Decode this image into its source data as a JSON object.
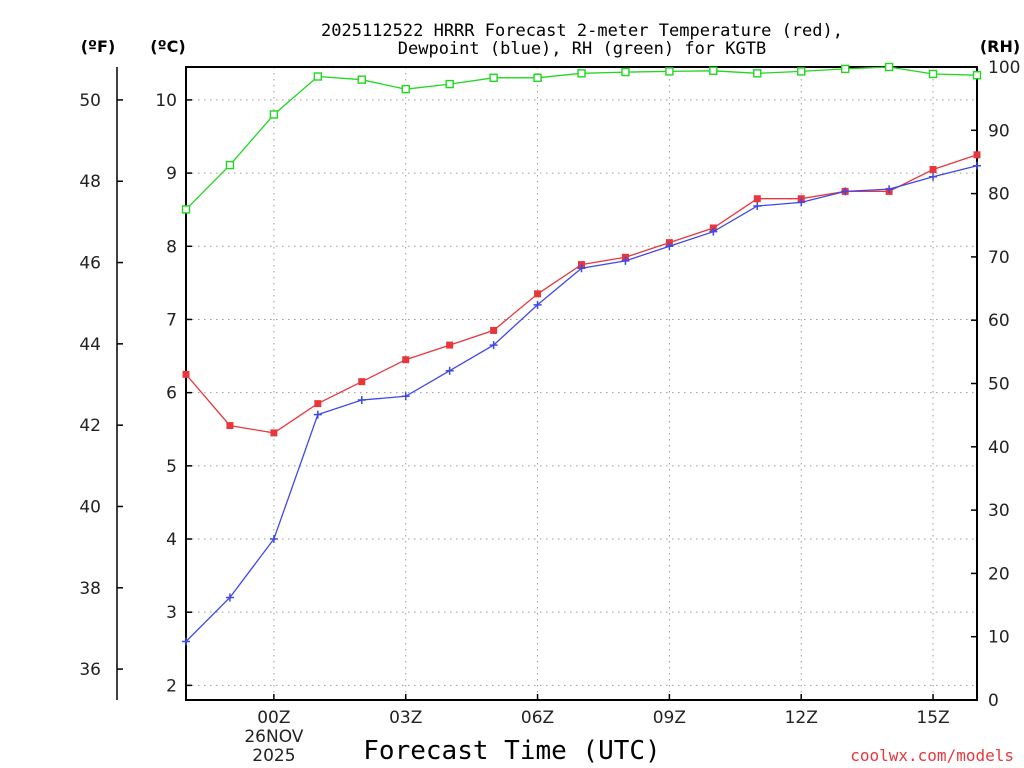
{
  "chart_data": {
    "type": "line",
    "title_line1": "2025112522 HRRR Forecast 2-meter Temperature (red),",
    "title_line2": "Dewpoint (blue), RH (green) for KGTB",
    "xlabel": "Forecast Time (UTC)",
    "credit": "coolwx.com/models",
    "unit_labels": {
      "fahrenheit": "(ºF)",
      "celsius": "(ºC)",
      "rh": "(RH)"
    },
    "x_hours": [
      -2,
      -1,
      0,
      1,
      2,
      3,
      4,
      5,
      6,
      7,
      8,
      9,
      10,
      11,
      12,
      13,
      14,
      15,
      16
    ],
    "x_ticks": [
      {
        "hour": 0,
        "label": "00Z",
        "sub1": "26NOV",
        "sub2": "2025"
      },
      {
        "hour": 3,
        "label": "03Z"
      },
      {
        "hour": 6,
        "label": "06Z"
      },
      {
        "hour": 9,
        "label": "09Z"
      },
      {
        "hour": 12,
        "label": "12Z"
      },
      {
        "hour": 15,
        "label": "15Z"
      }
    ],
    "x_range": [
      -2,
      16
    ],
    "celsius_axis": {
      "range": [
        1.8,
        10.45
      ],
      "ticks": [
        "2",
        "3",
        "4",
        "5",
        "6",
        "7",
        "8",
        "9",
        "10"
      ]
    },
    "fahrenheit_axis": {
      "ticks": [
        "36",
        "38",
        "40",
        "42",
        "44",
        "46",
        "48",
        "50"
      ]
    },
    "rh_axis": {
      "range": [
        0,
        100
      ],
      "ticks": [
        "0",
        "10",
        "20",
        "30",
        "40",
        "50",
        "60",
        "70",
        "80",
        "90",
        "100"
      ]
    },
    "series": [
      {
        "name": "Temperature",
        "unit": "C",
        "color": "#e8373c",
        "marker": "filled-square",
        "values": [
          6.25,
          5.55,
          5.45,
          5.85,
          6.15,
          6.45,
          6.65,
          6.85,
          7.35,
          7.75,
          7.85,
          8.05,
          8.25,
          8.65,
          8.65,
          8.75,
          8.75,
          9.05,
          9.25
        ]
      },
      {
        "name": "Dewpoint",
        "unit": "C",
        "color": "#3f48e8",
        "marker": "plus",
        "values": [
          2.6,
          3.2,
          4.0,
          5.7,
          5.9,
          5.95,
          6.3,
          6.65,
          7.2,
          7.7,
          7.8,
          8.0,
          8.2,
          8.55,
          8.6,
          8.75,
          8.78,
          8.95,
          9.1
        ]
      },
      {
        "name": "RH",
        "unit": "%",
        "color": "#1fd81f",
        "marker": "open-square",
        "values": [
          77.5,
          84.5,
          92.5,
          98.5,
          98.0,
          96.5,
          97.3,
          98.3,
          98.3,
          99.0,
          99.2,
          99.3,
          99.4,
          99.0,
          99.3,
          99.7,
          100.0,
          98.9,
          98.7
        ]
      }
    ]
  }
}
